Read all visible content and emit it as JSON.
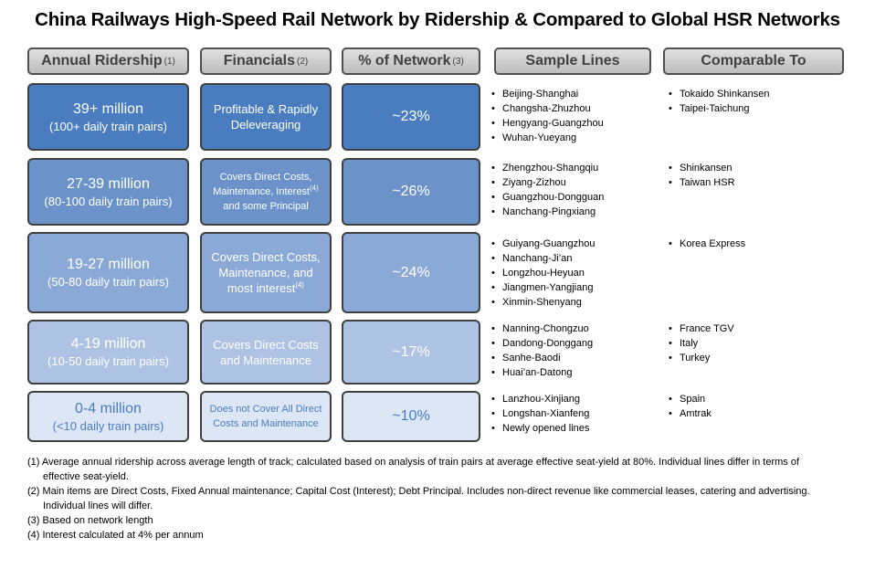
{
  "title": "China Railways High-Speed Rail Network by Ridership & Compared to Global HSR Networks",
  "headers": {
    "ridership": "Annual Ridership",
    "ridership_ref": "(1)",
    "financials": "Financials",
    "financials_ref": "(2)",
    "network": "% of Network",
    "network_ref": "(3)",
    "sample": "Sample Lines",
    "comparable": "Comparable To"
  },
  "tiers": [
    {
      "ridership": "39+ million",
      "pairs": "(100+ daily train pairs)",
      "financials": "Profitable & Rapidly Deleveraging",
      "network_pct": "~23%",
      "sample_lines": [
        "Beijing-Shanghai",
        "Changsha-Zhuzhou",
        "Hengyang-Guangzhou",
        "Wuhan-Yueyang"
      ],
      "comparable": [
        "Tokaido Shinkansen",
        "Taipei-Taichung"
      ]
    },
    {
      "ridership": "27-39 million",
      "pairs": "(80-100 daily train pairs)",
      "financials_pre": "Covers Direct Costs, Maintenance, Interest",
      "financials_ref": "(4)",
      "financials_post": " and some Principal",
      "network_pct": "~26%",
      "sample_lines": [
        "Zhengzhou-Shangqiu",
        "Ziyang-Zizhou",
        "Guangzhou-Dongguan",
        "Nanchang-Pingxiang"
      ],
      "comparable": [
        "Shinkansen",
        "Taiwan HSR"
      ]
    },
    {
      "ridership": "19-27 million",
      "pairs": "(50-80 daily train pairs)",
      "financials": "Covers Direct Costs, Maintenance, and most interest",
      "financials_ref": "(4)",
      "network_pct": "~24%",
      "sample_lines": [
        "Guiyang-Guangzhou",
        "Nanchang-Ji’an",
        "Longzhou-Heyuan",
        "Jiangmen-Yangjiang",
        "Xinmin-Shenyang"
      ],
      "comparable": [
        "Korea Express"
      ]
    },
    {
      "ridership": "4-19 million",
      "pairs": "(10-50 daily train pairs)",
      "financials": "Covers Direct Costs and Maintenance",
      "network_pct": "~17%",
      "sample_lines": [
        "Nanning-Chongzuo",
        "Dandong-Donggang",
        "Sanhe-Baodi",
        "Huai’an-Datong"
      ],
      "comparable": [
        "France TGV",
        "Italy",
        "Turkey"
      ]
    },
    {
      "ridership": "0-4 million",
      "pairs": "(<10 daily train pairs)",
      "financials": "Does not Cover All Direct Costs and Maintenance",
      "network_pct": "~10%",
      "sample_lines": [
        "Lanzhou-Xinjiang",
        "Longshan-Xianfeng",
        "Newly opened lines"
      ],
      "comparable": [
        "Spain",
        "Amtrak"
      ]
    }
  ],
  "footnotes": [
    "(1) Average annual ridership across average length of track; calculated based on analysis of train pairs at average effective seat-yield at 80%.  Individual lines differ in terms of effective seat-yield.",
    "(2) Main items are Direct Costs, Fixed Annual maintenance; Capital Cost (Interest); Debt Principal.  Includes non-direct revenue like commercial leases, catering and advertising.  Individual lines will differ.",
    "(3) Based on network length",
    "(4) Interest calculated at 4% per annum"
  ],
  "colors": {
    "tier_fills": [
      "#4a7dbf",
      "#6b92c9",
      "#8ba9d6",
      "#aec3e4",
      "#dce6f4"
    ],
    "header_fill": "#cfcfcf",
    "border": "#404040"
  }
}
